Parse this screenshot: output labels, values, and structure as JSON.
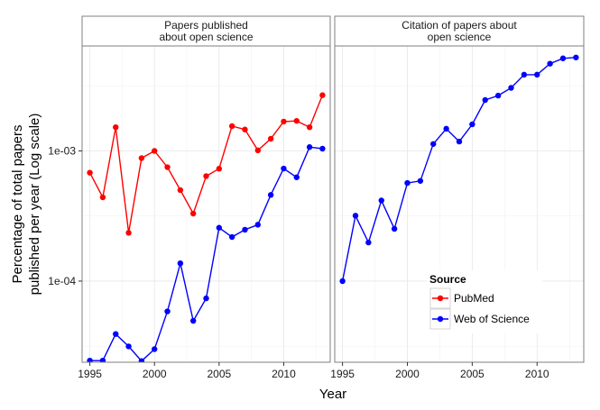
{
  "chart_data": {
    "type": "line",
    "facets": [
      {
        "title": "Papers published\nabout open science",
        "series": [
          {
            "name": "PubMed",
            "color": "#ff0000",
            "x": [
              1995,
              1996,
              1997,
              1998,
              1999,
              2000,
              2001,
              2002,
              2003,
              2004,
              2005,
              2006,
              2007,
              2008,
              2009,
              2010,
              2011,
              2012,
              2013
            ],
            "y": [
              0.00068,
              0.00044,
              0.00152,
              0.000235,
              0.00088,
              0.001,
              0.00075,
              0.0005,
              0.00033,
              0.00064,
              0.00073,
              0.00155,
              0.00146,
              0.00101,
              0.00124,
              0.00168,
              0.0017,
              0.00152,
              0.00268
            ]
          },
          {
            "name": "Web of Science",
            "color": "#0000ff",
            "x": [
              1995,
              1996,
              1997,
              1998,
              1999,
              2000,
              2001,
              2002,
              2003,
              2004,
              2005,
              2006,
              2007,
              2008,
              2009,
              2010,
              2011,
              2012,
              2013
            ],
            "y": [
              2.45e-05,
              2.45e-05,
              3.92e-05,
              3.15e-05,
              2.43e-05,
              3e-05,
              5.85e-05,
              0.000137,
              4.95e-05,
              7.37e-05,
              0.000257,
              0.000218,
              0.000248,
              0.000271,
              0.000459,
              0.000732,
              0.000627,
              0.00107,
              0.00104
            ]
          }
        ]
      },
      {
        "title": "Citation of papers about\nopen science",
        "series": [
          {
            "name": "Web of Science",
            "color": "#0000ff",
            "x": [
              1995,
              1996,
              1997,
              1998,
              1999,
              2000,
              2001,
              2002,
              2003,
              2004,
              2005,
              2006,
              2007,
              2008,
              2009,
              2010,
              2011,
              2012,
              2013
            ],
            "y": [
              0.0001,
              0.000318,
              0.000198,
              0.000416,
              0.000252,
              0.000567,
              0.000588,
              0.00113,
              0.00148,
              0.00118,
              0.0016,
              0.00246,
              0.00266,
              0.00305,
              0.00385,
              0.00385,
              0.00468,
              0.00514,
              0.00522
            ]
          }
        ]
      }
    ],
    "xlabel": "Year",
    "ylabel": "Percentage of total papers\npublished per year (Log scale)",
    "x_ticks": [
      1995,
      2000,
      2005,
      2010
    ],
    "y_ticks": [
      0.0001,
      0.001
    ],
    "y_tick_labels": [
      "1e-04",
      "1e-03"
    ],
    "ylim": [
      2.38e-05,
      0.0064
    ],
    "xlim": [
      1994.4,
      2013.6
    ],
    "y_scale": "log",
    "grid": true,
    "legend": {
      "title": "Source",
      "position": "bottom-right-inside",
      "entries": [
        {
          "name": "PubMed",
          "color": "#ff0000"
        },
        {
          "name": "Web of Science",
          "color": "#0000ff"
        }
      ]
    }
  }
}
